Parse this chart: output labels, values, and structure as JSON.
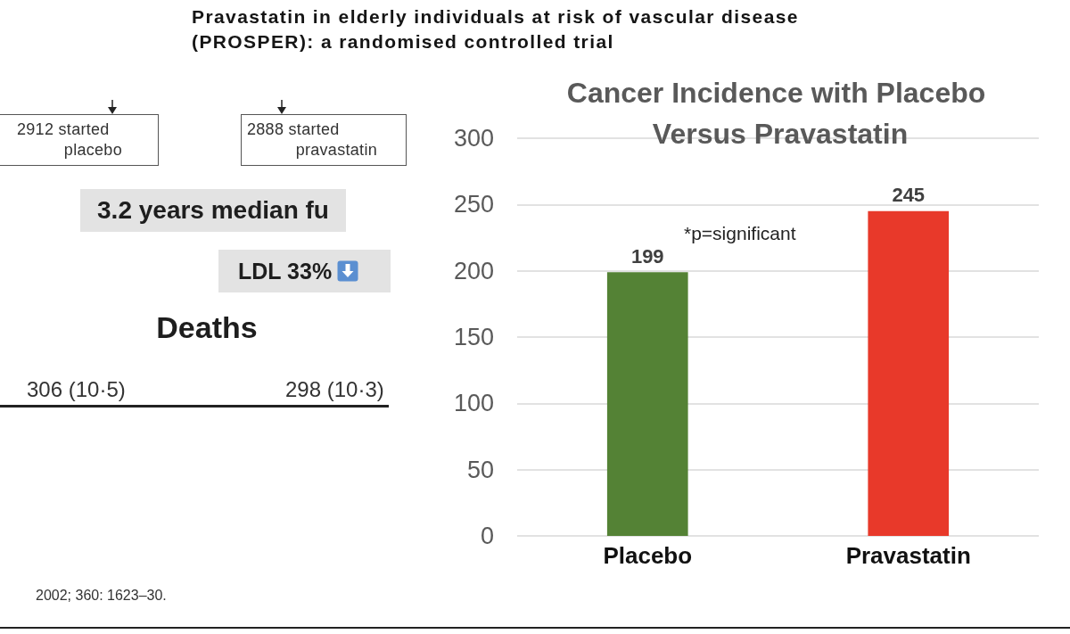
{
  "chart_data": {
    "type": "bar",
    "title": "Cancer Incidence with Placebo Versus Pravastatin",
    "categories": [
      "Placebo",
      "Pravastatin"
    ],
    "values": [
      199,
      245
    ],
    "colors": [
      "#548235",
      "#e8392a"
    ],
    "ylim": [
      0,
      300
    ],
    "yticks": [
      0,
      50,
      100,
      150,
      200,
      250,
      300
    ],
    "grid": "y",
    "data_labels": true,
    "annotations": [
      "Pravastatin in elderly individuals at risk of vascular disease (PROSPER): a randomised controlled trial",
      "2912 started placebo",
      "2888 started pravastatin",
      "3.2 years median fu",
      "LDL 33%",
      "Deaths",
      "306 (10·5)",
      "298 (10·3)",
      "*p=significant",
      "2002; 360: 1623–30."
    ]
  }
}
